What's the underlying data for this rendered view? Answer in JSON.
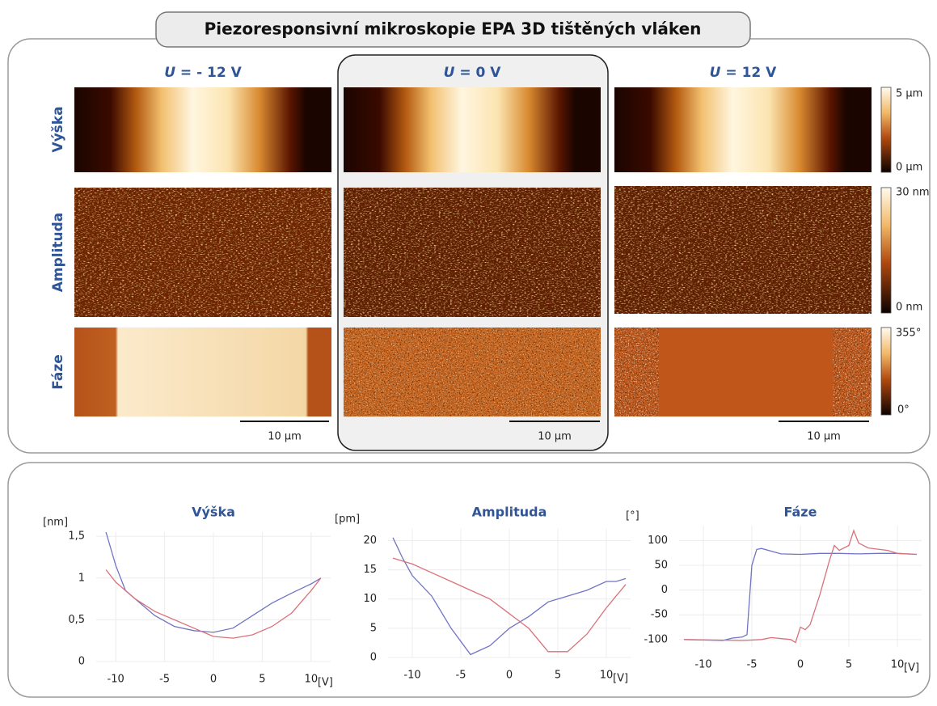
{
  "title": "Piezoresponsivní mikroskopie EPA 3D tištěných vláken",
  "columns": [
    {
      "variable": "U",
      "label": " = - 12 V"
    },
    {
      "variable": "U",
      "label": " = 0 V"
    },
    {
      "variable": "U",
      "label": " = 12 V"
    }
  ],
  "rows": [
    "Výška",
    "Amplituda",
    "Fáze"
  ],
  "colorbars": [
    {
      "max": "5 µm",
      "min": "0 µm"
    },
    {
      "max": "30 nm",
      "min": "0 nm"
    },
    {
      "max": "355°",
      "min": "0°"
    }
  ],
  "scale_bars": [
    "10 µm",
    "10 µm",
    "10 µm"
  ],
  "chart_data": [
    {
      "type": "line",
      "title": "Výška",
      "y_label": "[nm]",
      "x_label": "[V]",
      "grid": true,
      "xlim": [
        -12,
        12
      ],
      "xticks": [
        -10,
        -5,
        0,
        5,
        10
      ],
      "ylim": [
        0,
        1.55
      ],
      "yticks": [
        0,
        {
          "value": 0.5,
          "label": "0,5"
        },
        1,
        {
          "value": 1.5,
          "label": "1,5"
        }
      ],
      "series": [
        {
          "color": "#6f74c4",
          "x": [
            -11,
            -10,
            -9,
            -8,
            -6,
            -4,
            -2,
            0,
            2,
            4,
            6,
            8,
            10,
            11
          ],
          "values": [
            1.55,
            1.15,
            0.85,
            0.75,
            0.55,
            0.42,
            0.37,
            0.35,
            0.4,
            0.55,
            0.7,
            0.82,
            0.93,
            1.0
          ]
        },
        {
          "color": "#d9727a",
          "x": [
            -11,
            -10,
            -8,
            -6,
            -4,
            -2,
            0,
            2,
            4,
            6,
            8,
            10,
            11
          ],
          "values": [
            1.1,
            0.95,
            0.75,
            0.6,
            0.5,
            0.4,
            0.3,
            0.28,
            0.32,
            0.42,
            0.58,
            0.85,
            1.0
          ]
        }
      ]
    },
    {
      "type": "line",
      "title": "Amplituda",
      "y_label": "[pm]",
      "x_label": "[V]",
      "grid": true,
      "xlim": [
        -12.5,
        12.5
      ],
      "xticks": [
        -10,
        -5,
        0,
        5,
        10
      ],
      "ylim": [
        0,
        22
      ],
      "yticks": [
        0,
        5,
        10,
        15,
        20
      ],
      "series": [
        {
          "color": "#6f74c4",
          "x": [
            -12,
            -11,
            -10,
            -8,
            -6,
            -4,
            -2,
            0,
            2,
            4,
            6,
            8,
            10,
            11,
            12
          ],
          "values": [
            20.5,
            17,
            14,
            10.5,
            5,
            0.5,
            2,
            5,
            7,
            9.5,
            10.5,
            11.5,
            13,
            13,
            13.5
          ]
        },
        {
          "color": "#d9727a",
          "x": [
            -12,
            -11,
            -10,
            -8,
            -6,
            -4,
            -2,
            0,
            2,
            4,
            5,
            6,
            8,
            10,
            11,
            12
          ],
          "values": [
            17,
            16.5,
            16,
            14.5,
            13,
            11.5,
            10,
            7.5,
            5,
            1,
            1,
            1,
            4,
            8.5,
            10.5,
            12.5
          ]
        }
      ]
    },
    {
      "type": "line",
      "title": "Fáze",
      "y_label": "[°]",
      "x_label": "[V]",
      "grid": true,
      "xlim": [
        -12.5,
        12.5
      ],
      "xticks": [
        -10,
        -5,
        0,
        5,
        10
      ],
      "ylim": [
        -115,
        130
      ],
      "yticks": [
        -100,
        -50,
        0,
        50,
        100
      ],
      "series": [
        {
          "color": "#6f74c4",
          "x": [
            -12,
            -8,
            -7,
            -6,
            -5.5,
            -5,
            -4.5,
            -4,
            -2,
            0,
            2,
            4,
            6,
            8,
            10,
            12
          ],
          "values": [
            -100,
            -102,
            -97,
            -95,
            -90,
            50,
            82,
            84,
            73,
            72,
            74,
            74,
            73,
            74,
            74,
            72
          ]
        },
        {
          "color": "#d9727a",
          "x": [
            -12,
            -6,
            -4,
            -3,
            -1,
            -0.5,
            0,
            0.5,
            1,
            2,
            3,
            3.5,
            4,
            5,
            5.5,
            6,
            7,
            9,
            10,
            12
          ],
          "values": [
            -100,
            -102,
            -100,
            -96,
            -100,
            -106,
            -75,
            -80,
            -70,
            -10,
            60,
            90,
            80,
            90,
            120,
            95,
            85,
            80,
            74,
            72
          ]
        }
      ]
    }
  ]
}
